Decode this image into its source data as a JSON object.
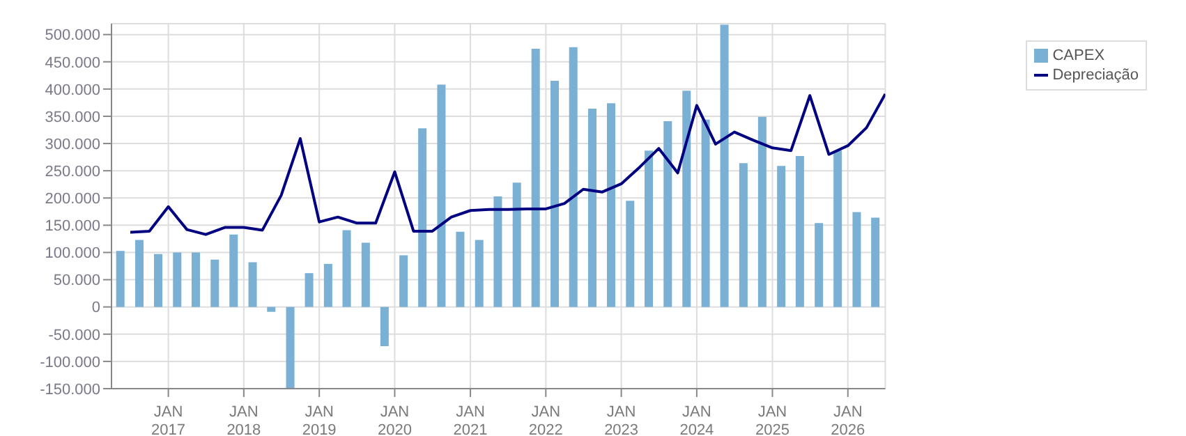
{
  "chart_data": {
    "type": "bar",
    "xlim": [
      "2016-04-01",
      "2026-07-01"
    ],
    "xticks": [
      {
        "value": "2017-01-01",
        "label": "JAN 2017"
      },
      {
        "value": "2018-01-01",
        "label": "JAN 2018"
      },
      {
        "value": "2019-01-01",
        "label": "JAN 2019"
      },
      {
        "value": "2020-01-01",
        "label": "JAN 2020"
      },
      {
        "value": "2021-01-01",
        "label": "JAN 2021"
      },
      {
        "value": "2022-01-01",
        "label": "JAN 2022"
      },
      {
        "value": "2023-01-01",
        "label": "JAN 2023"
      },
      {
        "value": "2024-01-01",
        "label": "JAN 2024"
      },
      {
        "value": "2025-01-01",
        "label": "JAN 2025"
      },
      {
        "value": "2026-01-01",
        "label": "JAN 2026"
      }
    ],
    "ylim": [
      -150000,
      520000
    ],
    "yticks": [
      {
        "value": -150000,
        "label": "-150.000"
      },
      {
        "value": -100000,
        "label": "-100.000"
      },
      {
        "value": -50000,
        "label": "-50.000"
      },
      {
        "value": 0,
        "label": "0"
      },
      {
        "value": 50000,
        "label": "50.000"
      },
      {
        "value": 100000,
        "label": "100.000"
      },
      {
        "value": 150000,
        "label": "150.000"
      },
      {
        "value": 200000,
        "label": "200.000"
      },
      {
        "value": 250000,
        "label": "250.000"
      },
      {
        "value": 300000,
        "label": "300.000"
      },
      {
        "value": 350000,
        "label": "350.000"
      },
      {
        "value": 400000,
        "label": "400.000"
      },
      {
        "value": 450000,
        "label": "450.000"
      },
      {
        "value": 500000,
        "label": "500.000"
      }
    ],
    "grid": true,
    "legend": "top right",
    "series": [
      {
        "name": "CAPEX",
        "color": "#7ab0d4",
        "x": [
          "2016-05-16",
          "2016-08-16",
          "2016-11-15",
          "2017-02-15",
          "2017-05-16",
          "2017-08-16",
          "2017-11-15",
          "2018-02-15",
          "2018-05-16",
          "2018-08-16",
          "2018-11-15",
          "2019-02-15",
          "2019-05-16",
          "2019-08-16",
          "2019-11-15",
          "2020-02-15",
          "2020-05-16",
          "2020-08-16",
          "2020-11-15",
          "2021-02-15",
          "2021-05-16",
          "2021-08-16",
          "2021-11-15",
          "2022-02-15",
          "2022-05-16",
          "2022-08-16",
          "2022-11-15",
          "2023-02-15",
          "2023-05-16",
          "2023-08-16",
          "2023-11-15",
          "2024-02-15",
          "2024-05-16",
          "2024-08-16",
          "2024-11-15",
          "2025-02-15",
          "2025-05-16",
          "2025-08-16",
          "2025-11-15",
          "2026-02-15",
          "2026-05-16"
        ],
        "values": [
          103000,
          123000,
          97000,
          100000,
          100000,
          87000,
          133000,
          82000,
          -9000,
          -150000,
          62000,
          79000,
          141000,
          118000,
          -72000,
          95000,
          328000,
          408000,
          138000,
          123000,
          203000,
          228000,
          474000,
          415000,
          477000,
          364000,
          374000,
          195000,
          287000,
          341000,
          397000,
          344000,
          518000,
          264000,
          349000,
          259000,
          277000,
          154000,
          287000,
          174000,
          164000
        ]
      },
      {
        "name": "Depreciação",
        "type": "line",
        "color": "#000080",
        "x": [
          "2016-07-01",
          "2016-10-01",
          "2017-01-01",
          "2017-04-01",
          "2017-07-01",
          "2017-10-01",
          "2018-01-01",
          "2018-04-01",
          "2018-07-01",
          "2018-10-01",
          "2019-01-01",
          "2019-04-01",
          "2019-07-01",
          "2019-10-01",
          "2020-01-01",
          "2020-04-01",
          "2020-07-01",
          "2020-10-01",
          "2021-01-01",
          "2021-04-01",
          "2021-07-01",
          "2021-10-01",
          "2022-01-01",
          "2022-04-01",
          "2022-07-01",
          "2022-10-01",
          "2023-01-01",
          "2023-04-01",
          "2023-07-01",
          "2023-10-01",
          "2024-01-01",
          "2024-04-01",
          "2024-07-01",
          "2024-10-01",
          "2025-01-01",
          "2025-04-01",
          "2025-07-01",
          "2025-10-01",
          "2026-01-01",
          "2026-04-01",
          "2026-07-01"
        ],
        "values": [
          137000,
          139000,
          184000,
          142000,
          133000,
          146000,
          146000,
          141000,
          205000,
          309000,
          156000,
          165000,
          154000,
          154000,
          248000,
          139000,
          139000,
          165000,
          177000,
          179000,
          179000,
          180000,
          180000,
          190000,
          216000,
          211000,
          226000,
          257000,
          291000,
          246000,
          370000,
          299000,
          321000,
          306000,
          292000,
          287000,
          388000,
          280000,
          296000,
          329000,
          391000
        ]
      }
    ]
  }
}
